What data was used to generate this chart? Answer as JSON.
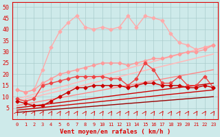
{
  "xlabel": "Vent moyen/en rafales ( km/h )",
  "background_color": "#ceeaea",
  "grid_color": "#aacccc",
  "text_color": "#dd0000",
  "ylim": [
    0,
    52
  ],
  "xlim": [
    -0.5,
    23.5
  ],
  "yticks": [
    5,
    10,
    15,
    20,
    25,
    30,
    35,
    40,
    45,
    50
  ],
  "xticks": [
    0,
    1,
    2,
    3,
    4,
    5,
    6,
    7,
    8,
    9,
    10,
    11,
    12,
    13,
    14,
    15,
    16,
    17,
    18,
    19,
    20,
    21,
    22,
    23
  ],
  "series": [
    {
      "x": [
        0,
        1,
        2,
        3,
        4,
        5,
        6,
        7,
        8,
        9,
        10,
        11,
        12,
        13,
        14,
        15,
        16,
        17,
        18,
        19,
        20,
        21,
        22,
        23
      ],
      "y": [
        13,
        12,
        13,
        22,
        32,
        39,
        43,
        46,
        41,
        40,
        41,
        40,
        41,
        46,
        41,
        46,
        45,
        44,
        38,
        34,
        33,
        31,
        32,
        33
      ],
      "color": "#ffaaaa",
      "lw": 1.0,
      "marker": "D",
      "ms": 2.5
    },
    {
      "x": [
        0,
        1,
        2,
        3,
        4,
        5,
        6,
        7,
        8,
        9,
        10,
        11,
        12,
        13,
        14,
        15,
        16,
        17,
        18,
        19,
        20,
        21,
        22,
        23
      ],
      "y": [
        13,
        12,
        13,
        16,
        18,
        20,
        21,
        22,
        23,
        24,
        25,
        25,
        25,
        24,
        25,
        26,
        27,
        27,
        28,
        29,
        30,
        30,
        31,
        33
      ],
      "color": "#ff9999",
      "lw": 1.0,
      "marker": "D",
      "ms": 2.5
    },
    {
      "x": [
        0,
        1,
        2,
        3,
        4,
        5,
        6,
        7,
        8,
        9,
        10,
        11,
        12,
        13,
        14,
        15,
        16,
        17,
        18,
        19,
        20,
        21,
        22,
        23
      ],
      "y": [
        9,
        8,
        9,
        15,
        16,
        17,
        18,
        19,
        19,
        19,
        19,
        18,
        18,
        15,
        18,
        25,
        22,
        16,
        16,
        19,
        15,
        15,
        19,
        14
      ],
      "color": "#ee4444",
      "lw": 1.0,
      "marker": "D",
      "ms": 2.5
    },
    {
      "x": [
        0,
        1,
        2,
        3,
        4,
        5,
        6,
        7,
        8,
        9,
        10,
        11,
        12,
        13,
        14,
        15,
        16,
        17,
        18,
        19,
        20,
        21,
        22,
        23
      ],
      "y": [
        8,
        7,
        6,
        6,
        8,
        10,
        12,
        14,
        14,
        15,
        15,
        15,
        15,
        14,
        15,
        16,
        16,
        15,
        15,
        15,
        14,
        14,
        15,
        14
      ],
      "color": "#cc0000",
      "lw": 1.0,
      "marker": "D",
      "ms": 2.5
    },
    {
      "x": [
        0,
        23
      ],
      "y": [
        9,
        33
      ],
      "color": "#ffbbbb",
      "lw": 1.2,
      "marker": null,
      "ms": 0
    },
    {
      "x": [
        0,
        23
      ],
      "y": [
        8,
        29
      ],
      "color": "#ffbbbb",
      "lw": 1.2,
      "marker": null,
      "ms": 0
    },
    {
      "x": [
        0,
        23
      ],
      "y": [
        6,
        22
      ],
      "color": "#ff8888",
      "lw": 1.0,
      "marker": null,
      "ms": 0
    },
    {
      "x": [
        0,
        23
      ],
      "y": [
        5,
        16
      ],
      "color": "#cc0000",
      "lw": 1.0,
      "marker": null,
      "ms": 0
    },
    {
      "x": [
        0,
        23
      ],
      "y": [
        4,
        13
      ],
      "color": "#cc0000",
      "lw": 1.0,
      "marker": null,
      "ms": 0
    },
    {
      "x": [
        0,
        23
      ],
      "y": [
        3,
        10
      ],
      "color": "#990000",
      "lw": 1.0,
      "marker": null,
      "ms": 0
    }
  ],
  "arrow_symbols": true
}
